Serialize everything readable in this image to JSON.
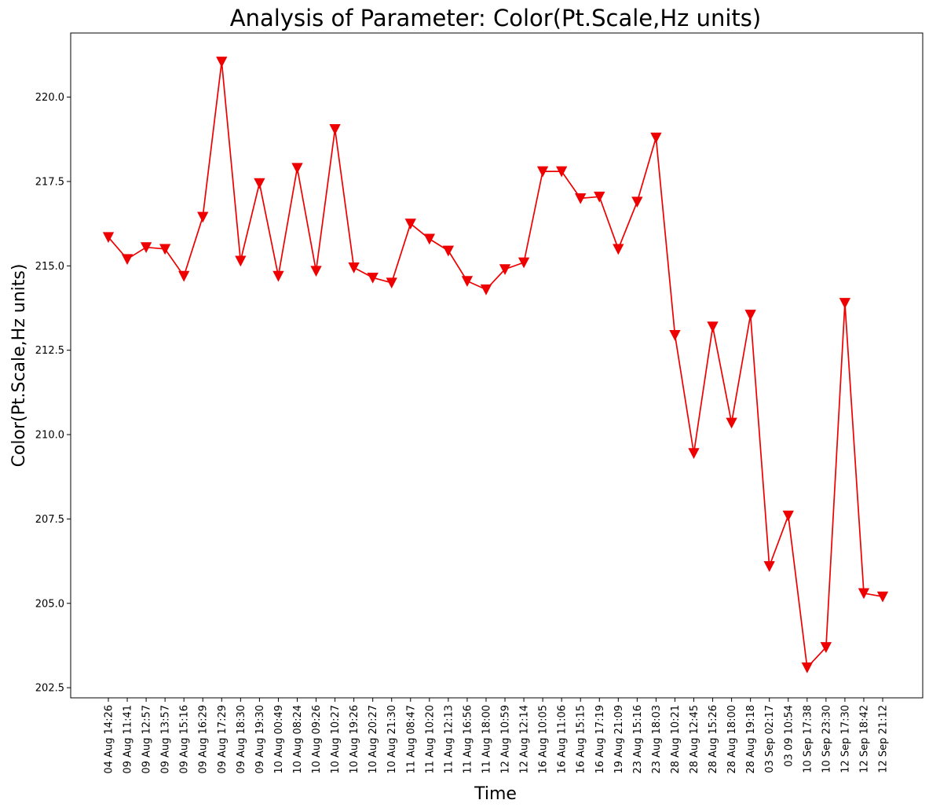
{
  "chart_data": {
    "type": "line",
    "title": "Analysis of Parameter: Color(Pt.Scale,Hz units)",
    "xlabel": "Time",
    "ylabel": "Color(Pt.Scale,Hz units)",
    "ylim": [
      202.2,
      221.9
    ],
    "yticks": [
      "202.5",
      "205.0",
      "207.5",
      "210.0",
      "212.5",
      "215.0",
      "217.5",
      "220.0"
    ],
    "categories": [
      "04 Aug 14:26",
      "09 Aug 11:41",
      "09 Aug 12:57",
      "09 Aug 13:57",
      "09 Aug 15:16",
      "09 Aug 16:29",
      "09 Aug 17:29",
      "09 Aug 18:30",
      "09 Aug 19:30",
      "10 Aug 00:49",
      "10 Aug 08:24",
      "10 Aug 09:26",
      "10 Aug 10:27",
      "10 Aug 19:26",
      "10 Aug 20:27",
      "10 Aug 21:30",
      "11 Aug 08:47",
      "11 Aug 10:20",
      "11 Aug 12:13",
      "11 Aug 16:56",
      "11 Aug 18:00",
      "12 Aug 10:59",
      "12 Aug 12:14",
      "16 Aug 10:05",
      "16 Aug 11:06",
      "16 Aug 15:15",
      "16 Aug 17:19",
      "19 Aug 21:09",
      "23 Aug 15:16",
      "23 Aug 18:03",
      "28 Aug 10:21",
      "28 Aug 12:45",
      "28 Aug 15:26",
      "28 Aug 18:00",
      "28 Aug 19:18",
      "03 Sep 02:17",
      "03 09 10:54",
      "10 Sep 17:38",
      "10 Sep 23:30",
      "12 Sep 17:30",
      "12 Sep 18:42",
      "12 Sep 21:12"
    ],
    "series": [
      {
        "color": "#ee0000",
        "marker": "triangle-down",
        "values": [
          215.85,
          215.2,
          215.55,
          215.5,
          214.7,
          216.45,
          221.05,
          215.15,
          217.45,
          214.7,
          217.9,
          214.85,
          219.05,
          214.95,
          214.65,
          214.5,
          216.25,
          215.8,
          215.45,
          214.55,
          214.3,
          214.9,
          215.1,
          217.8,
          217.8,
          217.0,
          217.05,
          215.5,
          216.9,
          218.8,
          212.95,
          209.45,
          213.2,
          210.35,
          213.55,
          206.1,
          207.6,
          203.1,
          203.7,
          213.9,
          205.3,
          205.2
        ]
      }
    ],
    "grid": false,
    "legend": "none"
  }
}
